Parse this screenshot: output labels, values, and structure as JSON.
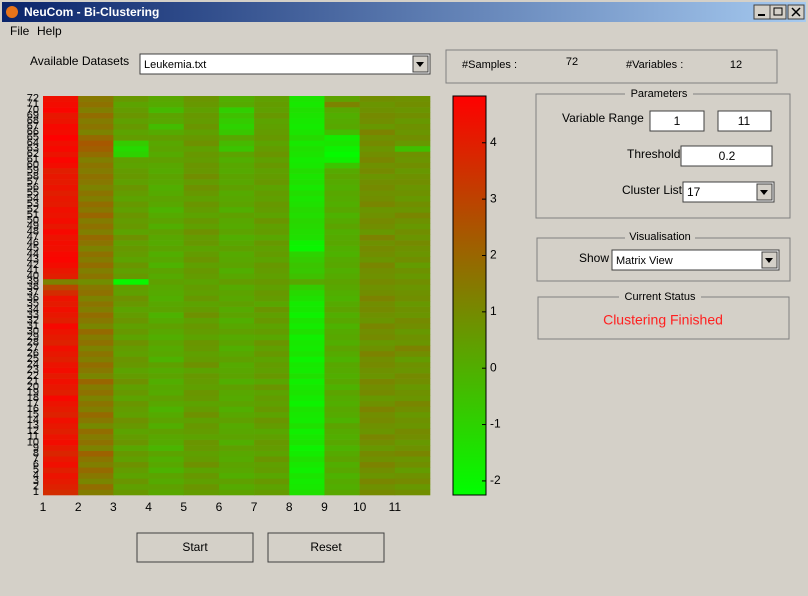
{
  "window": {
    "title": "NeuCom - Bi-Clustering"
  },
  "menu": [
    "File",
    "Help"
  ],
  "dataset": {
    "label": "Available Datasets",
    "selected": "Leukemia.txt"
  },
  "info": {
    "samples_label": "#Samples :",
    "samples": 72,
    "variables_label": "#Variables :",
    "variables": 12
  },
  "parameters": {
    "title": "Parameters",
    "variable_range_label": "Variable Range",
    "range_from": 1,
    "range_to": 11,
    "threshold_label": "Threshold",
    "threshold": 0.2,
    "cluster_list_label": "Cluster List",
    "cluster": 17
  },
  "visualisation": {
    "title": "Visualisation",
    "show_label": "Show",
    "show": "Matrix View"
  },
  "status": {
    "title": "Current Status",
    "text": "Clustering Finished"
  },
  "buttons": [
    "Start",
    "Reset"
  ],
  "chart_data": {
    "type": "heatmap",
    "x": [
      1,
      2,
      3,
      4,
      5,
      6,
      7,
      8,
      9,
      10,
      11
    ],
    "y": [
      1,
      2,
      3,
      4,
      5,
      6,
      7,
      8,
      9,
      10,
      11,
      12,
      13,
      14,
      15,
      16,
      17,
      18,
      19,
      20,
      21,
      22,
      23,
      24,
      25,
      26,
      27,
      28,
      29,
      30,
      31,
      32,
      33,
      34,
      35,
      36,
      37,
      38,
      39,
      40,
      41,
      42,
      43,
      44,
      45,
      46,
      47,
      48,
      49,
      50,
      51,
      52,
      53,
      54,
      55,
      56,
      57,
      58,
      59,
      60,
      61,
      62,
      63,
      64,
      65,
      66,
      67,
      68,
      69,
      70,
      71,
      72
    ],
    "colormap": [
      "#00ff00",
      "#ff0000"
    ],
    "clim": [
      -2.25,
      4.83
    ],
    "cticks": [
      -2,
      -1,
      0,
      1,
      2,
      3,
      4
    ],
    "values": [
      [
        3.6,
        1.4,
        0.6,
        0.2,
        0.5,
        0.3,
        0.5,
        -1.4,
        0.2,
        1.0,
        0.9
      ],
      [
        3.9,
        1.8,
        0.4,
        0.4,
        0.7,
        0.1,
        0.3,
        -1.6,
        0.0,
        0.8,
        0.6
      ],
      [
        4.1,
        1.1,
        0.7,
        0.1,
        0.4,
        0.4,
        0.6,
        -1.7,
        0.1,
        1.1,
        1.0
      ],
      [
        4.3,
        1.5,
        0.3,
        0.3,
        0.6,
        0.0,
        0.2,
        -1.5,
        -0.1,
        0.7,
        0.8
      ],
      [
        4.0,
        1.9,
        0.5,
        -0.1,
        0.3,
        0.2,
        0.5,
        -1.8,
        0.2,
        0.9,
        0.5
      ],
      [
        4.4,
        1.3,
        0.8,
        0.2,
        0.8,
        0.3,
        0.4,
        -1.6,
        0.0,
        1.2,
        0.9
      ],
      [
        4.2,
        1.6,
        0.4,
        0.0,
        0.5,
        0.1,
        0.7,
        -1.4,
        0.3,
        0.8,
        0.7
      ],
      [
        3.8,
        2.1,
        0.6,
        0.3,
        0.4,
        0.2,
        0.3,
        -1.7,
        0.1,
        1.0,
        1.1
      ],
      [
        4.1,
        1.2,
        0.2,
        -0.2,
        0.6,
        0.4,
        0.5,
        -1.9,
        -0.1,
        0.6,
        0.8
      ],
      [
        4.5,
        1.7,
        0.7,
        0.1,
        0.7,
        0.0,
        0.6,
        -1.5,
        0.2,
        0.9,
        0.6
      ],
      [
        4.3,
        1.4,
        0.5,
        0.2,
        0.3,
        0.3,
        0.4,
        -1.6,
        0.0,
        1.1,
        0.9
      ],
      [
        4.0,
        1.8,
        0.3,
        0.4,
        0.5,
        0.2,
        0.2,
        -1.8,
        0.1,
        0.7,
        1.0
      ],
      [
        4.2,
        1.0,
        0.6,
        0.0,
        0.6,
        0.1,
        0.5,
        -1.4,
        0.3,
        0.8,
        0.7
      ],
      [
        4.4,
        1.5,
        0.8,
        0.3,
        0.4,
        0.4,
        0.7,
        -1.7,
        -0.1,
        1.0,
        0.8
      ],
      [
        3.9,
        1.9,
        0.4,
        0.1,
        0.8,
        0.2,
        0.3,
        -1.6,
        0.1,
        0.9,
        0.6
      ],
      [
        4.1,
        1.3,
        0.5,
        -0.1,
        0.5,
        0.0,
        0.6,
        -1.5,
        0.2,
        1.2,
        0.9
      ],
      [
        4.3,
        1.6,
        0.7,
        0.2,
        0.3,
        0.3,
        0.4,
        -1.9,
        0.0,
        0.8,
        1.1
      ],
      [
        4.6,
        1.2,
        0.3,
        0.4,
        0.6,
        0.1,
        0.5,
        -1.7,
        0.1,
        0.6,
        0.7
      ],
      [
        4.0,
        1.7,
        0.6,
        0.1,
        0.7,
        0.2,
        0.3,
        -1.5,
        0.3,
        1.0,
        0.8
      ],
      [
        4.2,
        1.4,
        0.4,
        0.2,
        0.4,
        0.4,
        0.7,
        -1.6,
        -0.1,
        0.9,
        0.6
      ],
      [
        4.4,
        2.0,
        0.8,
        0.0,
        0.5,
        0.0,
        0.2,
        -1.8,
        0.2,
        1.1,
        0.9
      ],
      [
        4.1,
        1.1,
        0.5,
        0.3,
        0.6,
        0.3,
        0.6,
        -1.4,
        0.0,
        0.7,
        1.0
      ],
      [
        4.5,
        1.5,
        0.3,
        0.1,
        0.3,
        0.2,
        0.4,
        -1.7,
        0.1,
        0.8,
        0.7
      ],
      [
        4.3,
        1.8,
        0.6,
        0.4,
        0.8,
        0.1,
        0.5,
        -1.6,
        0.2,
        1.0,
        0.8
      ],
      [
        4.0,
        1.3,
        0.7,
        -0.1,
        0.5,
        0.4,
        0.3,
        -1.9,
        -0.1,
        0.9,
        0.5
      ],
      [
        4.2,
        1.6,
        0.4,
        0.2,
        0.4,
        0.2,
        0.6,
        -1.5,
        0.1,
        1.2,
        0.9
      ],
      [
        4.4,
        1.2,
        0.5,
        0.1,
        0.6,
        0.0,
        0.4,
        -1.7,
        0.3,
        0.8,
        1.2
      ],
      [
        3.9,
        1.7,
        0.8,
        0.3,
        0.7,
        0.3,
        0.7,
        -1.6,
        0.0,
        0.6,
        0.7
      ],
      [
        4.1,
        1.4,
        0.3,
        0.0,
        0.3,
        0.1,
        0.2,
        -1.8,
        0.2,
        1.0,
        0.8
      ],
      [
        4.3,
        1.9,
        0.6,
        0.2,
        0.5,
        0.4,
        0.5,
        -1.4,
        0.1,
        0.9,
        0.6
      ],
      [
        4.6,
        1.1,
        0.4,
        0.4,
        0.6,
        0.2,
        0.3,
        -1.7,
        -0.1,
        1.1,
        0.9
      ],
      [
        4.0,
        1.5,
        0.7,
        0.1,
        0.4,
        0.0,
        0.6,
        -1.5,
        0.2,
        0.7,
        1.0
      ],
      [
        4.2,
        1.8,
        0.5,
        -0.1,
        0.8,
        0.3,
        0.4,
        -1.9,
        0.0,
        0.8,
        0.7
      ],
      [
        4.4,
        1.3,
        0.3,
        0.3,
        0.5,
        0.1,
        0.7,
        -1.6,
        0.3,
        1.0,
        0.8
      ],
      [
        4.1,
        1.6,
        0.6,
        0.2,
        0.3,
        0.4,
        0.2,
        -1.7,
        0.1,
        0.9,
        0.6
      ],
      [
        4.3,
        1.2,
        0.8,
        0.0,
        0.6,
        0.2,
        0.5,
        -1.4,
        -0.1,
        1.2,
        0.9
      ],
      [
        3.6,
        1.7,
        0.4,
        0.1,
        0.4,
        0.3,
        0.6,
        -1.2,
        0.0,
        0.9,
        0.8
      ],
      [
        2.8,
        1.5,
        0.5,
        0.2,
        0.5,
        0.1,
        0.4,
        -0.8,
        0.2,
        0.8,
        0.7
      ],
      [
        1.2,
        0.9,
        -2.0,
        0.4,
        0.3,
        0.5,
        0.6,
        0.2,
        0.3,
        1.0,
        0.9
      ],
      [
        4.0,
        1.6,
        0.6,
        0.1,
        0.5,
        0.2,
        0.4,
        -0.5,
        0.1,
        0.8,
        0.6
      ],
      [
        4.2,
        1.3,
        0.4,
        0.3,
        0.6,
        0.0,
        0.5,
        -0.7,
        0.0,
        0.9,
        0.8
      ],
      [
        4.5,
        1.8,
        0.7,
        -0.1,
        0.4,
        0.3,
        0.6,
        -0.6,
        0.2,
        1.1,
        0.5
      ],
      [
        4.7,
        1.4,
        0.3,
        0.2,
        0.7,
        0.2,
        0.3,
        -0.8,
        0.1,
        0.7,
        0.9
      ],
      [
        4.6,
        1.7,
        0.5,
        0.0,
        0.5,
        0.1,
        0.5,
        -1.0,
        -0.1,
        0.9,
        0.7
      ],
      [
        4.4,
        1.2,
        0.6,
        0.3,
        0.3,
        0.4,
        0.4,
        -2.0,
        0.0,
        1.0,
        0.8
      ],
      [
        4.5,
        1.6,
        0.4,
        0.1,
        0.6,
        0.2,
        0.6,
        -1.9,
        0.2,
        0.8,
        1.0
      ],
      [
        4.3,
        1.9,
        0.8,
        0.2,
        0.5,
        0.0,
        0.2,
        -1.4,
        0.1,
        1.2,
        0.7
      ],
      [
        4.6,
        1.3,
        0.3,
        0.4,
        0.8,
        0.3,
        0.5,
        -1.3,
        0.0,
        0.6,
        0.9
      ],
      [
        4.2,
        1.7,
        0.6,
        0.0,
        0.4,
        0.1,
        0.4,
        -1.2,
        0.3,
        0.9,
        0.6
      ],
      [
        4.5,
        1.4,
        0.5,
        0.3,
        0.6,
        0.2,
        0.7,
        -1.1,
        0.1,
        1.0,
        0.8
      ],
      [
        4.3,
        2.0,
        0.7,
        0.1,
        0.3,
        0.4,
        0.3,
        -1.3,
        -0.1,
        0.8,
        1.1
      ],
      [
        4.4,
        1.5,
        0.4,
        -0.1,
        0.5,
        0.0,
        0.5,
        -1.2,
        0.2,
        0.7,
        0.7
      ],
      [
        4.1,
        1.8,
        0.6,
        0.2,
        0.7,
        0.3,
        0.6,
        -1.4,
        0.0,
        1.1,
        0.9
      ],
      [
        4.2,
        1.3,
        0.3,
        0.3,
        0.4,
        0.2,
        0.4,
        -1.5,
        0.1,
        0.9,
        0.6
      ],
      [
        4.0,
        1.6,
        0.5,
        0.1,
        0.6,
        0.1,
        0.5,
        -1.3,
        0.2,
        0.8,
        0.8
      ],
      [
        4.3,
        1.2,
        0.7,
        0.0,
        0.8,
        0.4,
        0.3,
        -1.6,
        0.0,
        1.0,
        0.7
      ],
      [
        4.1,
        1.5,
        0.4,
        0.2,
        0.5,
        0.2,
        0.6,
        -1.4,
        0.1,
        0.9,
        0.9
      ],
      [
        4.2,
        1.7,
        0.6,
        0.3,
        0.9,
        0.3,
        0.5,
        -1.5,
        0.3,
        0.7,
        0.8
      ],
      [
        4.0,
        1.4,
        0.5,
        0.1,
        0.6,
        0.1,
        0.4,
        -1.3,
        0.1,
        1.0,
        0.6
      ],
      [
        4.5,
        1.6,
        0.3,
        0.2,
        0.7,
        0.2,
        0.6,
        -1.6,
        -0.6,
        0.8,
        0.9
      ],
      [
        4.7,
        1.3,
        0.4,
        0.4,
        0.5,
        0.0,
        0.4,
        -1.7,
        -1.8,
        1.1,
        0.7
      ],
      [
        4.3,
        1.8,
        -1.0,
        0.1,
        0.6,
        0.3,
        0.7,
        -1.5,
        -2.1,
        0.9,
        0.8
      ],
      [
        4.6,
        2.2,
        -1.2,
        0.3,
        0.4,
        -0.6,
        0.5,
        -1.4,
        -1.9,
        0.7,
        -0.5
      ],
      [
        4.4,
        2.4,
        -0.8,
        0.2,
        0.8,
        -0.3,
        0.3,
        -1.6,
        -1.5,
        1.0,
        0.6
      ],
      [
        4.8,
        1.9,
        0.5,
        0.5,
        0.6,
        0.2,
        0.6,
        -1.2,
        -1.7,
        0.8,
        0.9
      ],
      [
        4.5,
        1.2,
        0.3,
        0.1,
        0.4,
        -0.7,
        0.5,
        -1.5,
        -0.4,
        1.2,
        0.7
      ],
      [
        4.6,
        1.6,
        0.6,
        -0.4,
        0.7,
        -1.0,
        0.4,
        -1.7,
        0.2,
        0.6,
        0.8
      ],
      [
        4.3,
        1.4,
        0.4,
        0.2,
        0.5,
        -0.8,
        0.3,
        -1.6,
        0.1,
        0.9,
        0.6
      ],
      [
        4.2,
        1.8,
        0.7,
        0.3,
        0.6,
        -0.5,
        0.6,
        -1.5,
        0.0,
        1.0,
        0.9
      ],
      [
        4.7,
        1.3,
        0.5,
        -0.3,
        0.4,
        -0.9,
        0.4,
        -1.4,
        0.2,
        0.8,
        0.7
      ],
      [
        4.5,
        1.7,
        0.3,
        0.1,
        0.6,
        0.1,
        0.5,
        -1.6,
        1.2,
        0.7,
        0.9
      ],
      [
        4.4,
        1.5,
        0.6,
        0.2,
        0.7,
        0.0,
        0.4,
        -1.5,
        0.3,
        0.9,
        0.8
      ]
    ]
  }
}
